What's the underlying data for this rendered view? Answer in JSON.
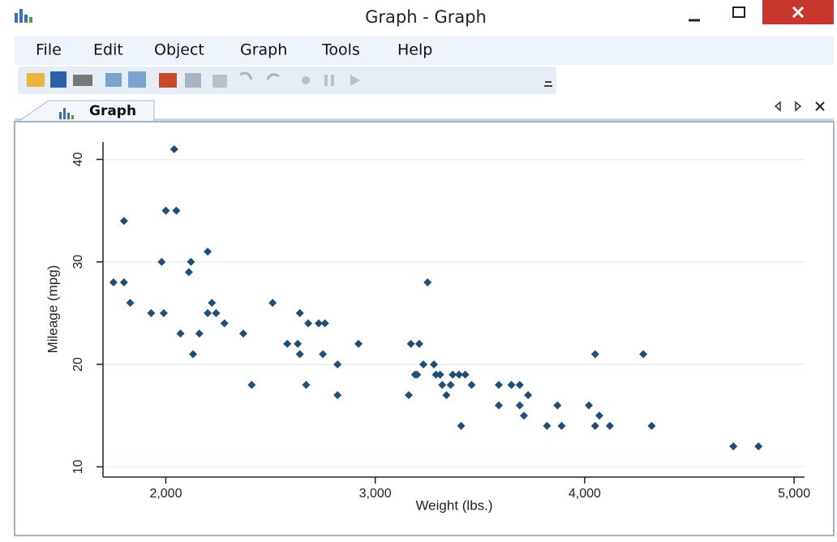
{
  "window": {
    "title": "Graph - Graph"
  },
  "menu": [
    "File",
    "Edit",
    "Object",
    "Graph",
    "Tools",
    "Help"
  ],
  "tab": {
    "label": "Graph"
  },
  "chart_data": {
    "type": "scatter",
    "x_label": "Weight (lbs.)",
    "y_label": "Mileage (mpg)",
    "color": "#1f4e79",
    "grid": true,
    "xlim": [
      1700,
      5050
    ],
    "ylim": [
      9,
      41.7
    ],
    "xticks": [
      {
        "value": 2000,
        "label": "2,000"
      },
      {
        "value": 3000,
        "label": "3,000"
      },
      {
        "value": 4000,
        "label": "4,000"
      },
      {
        "value": 5000,
        "label": "5,000"
      }
    ],
    "yticks": [
      10,
      20,
      30,
      40
    ],
    "x": [
      1750,
      1800,
      1800,
      1830,
      1930,
      1990,
      1980,
      2000,
      2050,
      2040,
      2070,
      2110,
      2120,
      2130,
      2160,
      2200,
      2200,
      2220,
      2240,
      2280,
      2370,
      2410,
      2510,
      2580,
      2630,
      2640,
      2640,
      2670,
      2680,
      2730,
      2760,
      2750,
      2820,
      2820,
      2920,
      3160,
      3170,
      3190,
      3210,
      3200,
      3230,
      3250,
      3280,
      3290,
      3310,
      3320,
      3340,
      3360,
      3370,
      3400,
      3410,
      3430,
      3460,
      3590,
      3590,
      3650,
      3690,
      3690,
      3710,
      3730,
      3820,
      3870,
      3890,
      4020,
      4050,
      4050,
      4070,
      4120,
      4280,
      4320,
      4710,
      4830
    ],
    "y": [
      28,
      28,
      34,
      26,
      25,
      25,
      30,
      35,
      35,
      41,
      23,
      29,
      30,
      21,
      23,
      31,
      25,
      26,
      25,
      24,
      23,
      18,
      26,
      22,
      22,
      25,
      21,
      18,
      24,
      24,
      24,
      21,
      20,
      17,
      22,
      17,
      22,
      19,
      22,
      19,
      20,
      28,
      20,
      19,
      19,
      18,
      17,
      18,
      19,
      19,
      14,
      19,
      18,
      18,
      16,
      18,
      18,
      16,
      15,
      17,
      14,
      16,
      14,
      16,
      14,
      21,
      15,
      14,
      21,
      14,
      12,
      12
    ]
  }
}
